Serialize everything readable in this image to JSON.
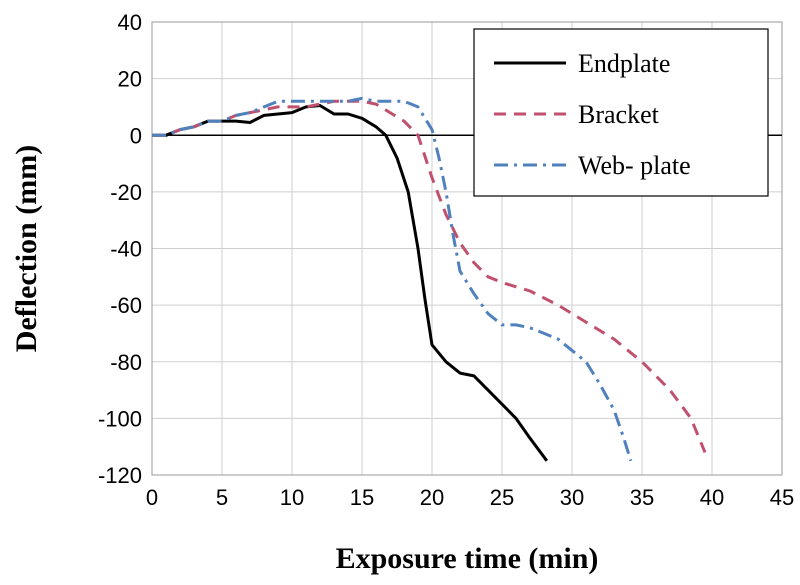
{
  "chart_data": {
    "type": "line",
    "title": "",
    "xlabel": "Exposure time (min)",
    "ylabel": "Deflection (mm)",
    "xlim": [
      0,
      45
    ],
    "ylim": [
      -120,
      40
    ],
    "xticks": [
      0,
      5,
      10,
      15,
      20,
      25,
      30,
      35,
      40,
      45
    ],
    "yticks": [
      40,
      20,
      0,
      -20,
      -40,
      -60,
      -80,
      -100,
      -120
    ],
    "grid": true,
    "legend_position": "top-right",
    "series": [
      {
        "name": "Endplate",
        "color": "#000000",
        "style": "solid",
        "points": [
          [
            0,
            0
          ],
          [
            1,
            0
          ],
          [
            2,
            2
          ],
          [
            3,
            3
          ],
          [
            4,
            5
          ],
          [
            5,
            5
          ],
          [
            6,
            5
          ],
          [
            7,
            4.5
          ],
          [
            8,
            7
          ],
          [
            9,
            7.5
          ],
          [
            10,
            8
          ],
          [
            11,
            10
          ],
          [
            12,
            10.5
          ],
          [
            13,
            7.5
          ],
          [
            14,
            7.5
          ],
          [
            15,
            6
          ],
          [
            16,
            3
          ],
          [
            16.7,
            0
          ],
          [
            17.5,
            -8
          ],
          [
            18.3,
            -20
          ],
          [
            19,
            -40
          ],
          [
            19.5,
            -58
          ],
          [
            20,
            -74
          ],
          [
            21,
            -80
          ],
          [
            22,
            -84
          ],
          [
            23,
            -85
          ],
          [
            24,
            -90
          ],
          [
            25,
            -95
          ],
          [
            26,
            -100
          ],
          [
            27,
            -107
          ],
          [
            28.2,
            -115
          ]
        ]
      },
      {
        "name": "Bracket",
        "color": "#c0506e",
        "style": "dashed",
        "points": [
          [
            0,
            0
          ],
          [
            1,
            0
          ],
          [
            2,
            2
          ],
          [
            3,
            3
          ],
          [
            4,
            5
          ],
          [
            5,
            5
          ],
          [
            6,
            7
          ],
          [
            7,
            8
          ],
          [
            8,
            9
          ],
          [
            9,
            10
          ],
          [
            10,
            10
          ],
          [
            11,
            10
          ],
          [
            12,
            11
          ],
          [
            13,
            12
          ],
          [
            14,
            12
          ],
          [
            15,
            12
          ],
          [
            16,
            11
          ],
          [
            17,
            8
          ],
          [
            18,
            5
          ],
          [
            19,
            0
          ],
          [
            20,
            -15
          ],
          [
            21,
            -28
          ],
          [
            22,
            -38
          ],
          [
            23,
            -45
          ],
          [
            24,
            -50
          ],
          [
            25,
            -52
          ],
          [
            27,
            -55
          ],
          [
            29,
            -60
          ],
          [
            31,
            -66
          ],
          [
            33,
            -72
          ],
          [
            35,
            -80
          ],
          [
            37,
            -90
          ],
          [
            38.5,
            -100
          ],
          [
            39.5,
            -112
          ]
        ]
      },
      {
        "name": "Web- plate",
        "color": "#4f81bd",
        "style": "dashdot",
        "points": [
          [
            0,
            0
          ],
          [
            1,
            0
          ],
          [
            2,
            2
          ],
          [
            3,
            3
          ],
          [
            4,
            5
          ],
          [
            5,
            5
          ],
          [
            6,
            7
          ],
          [
            7,
            8
          ],
          [
            8,
            10
          ],
          [
            9,
            12
          ],
          [
            10,
            12
          ],
          [
            11,
            12
          ],
          [
            12,
            12
          ],
          [
            13,
            12
          ],
          [
            14,
            12
          ],
          [
            15,
            13
          ],
          [
            16,
            12
          ],
          [
            17,
            12
          ],
          [
            18,
            12
          ],
          [
            19,
            10
          ],
          [
            20,
            2
          ],
          [
            20.5,
            -8
          ],
          [
            21,
            -20
          ],
          [
            21.5,
            -35
          ],
          [
            22,
            -48
          ],
          [
            23,
            -56
          ],
          [
            24,
            -63
          ],
          [
            25,
            -67
          ],
          [
            26,
            -67
          ],
          [
            27,
            -68
          ],
          [
            28,
            -70
          ],
          [
            29,
            -72
          ],
          [
            30,
            -76
          ],
          [
            31,
            -80
          ],
          [
            32,
            -88
          ],
          [
            33,
            -97
          ],
          [
            33.7,
            -107
          ],
          [
            34.2,
            -115
          ]
        ]
      }
    ]
  }
}
